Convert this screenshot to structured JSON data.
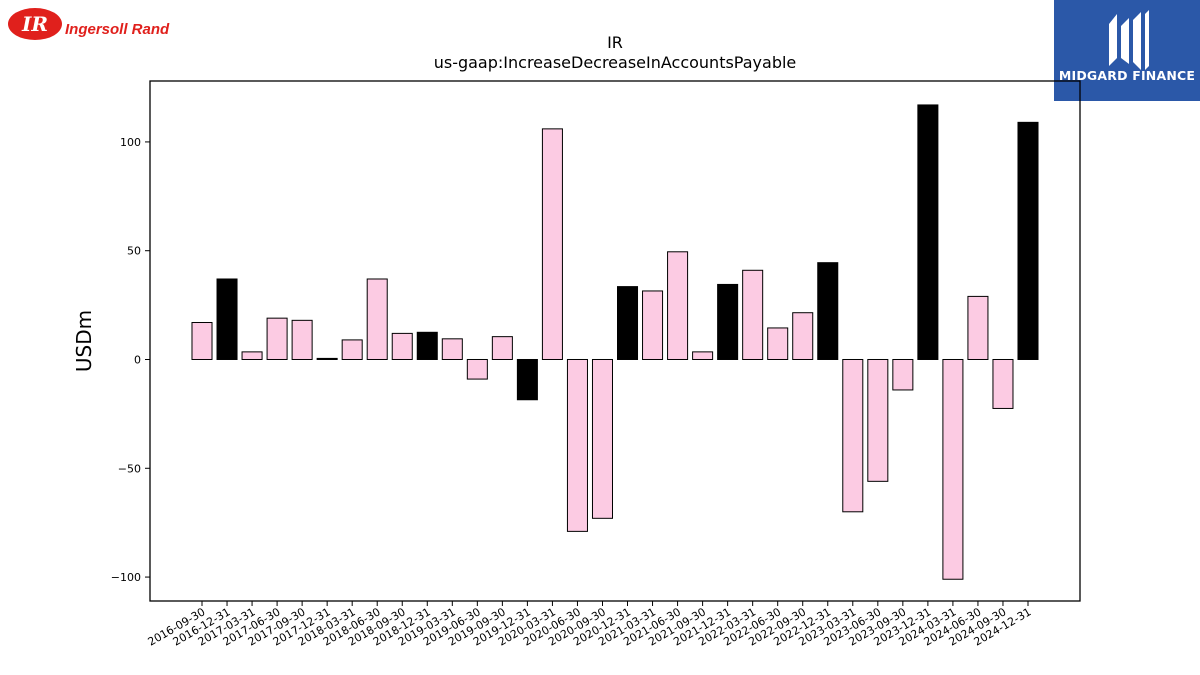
{
  "header": {
    "left_logo_name": "Ingersoll Rand",
    "right_logo_name": "MIDGARD FINANCE"
  },
  "colors": {
    "bar_light": "#fccbe3",
    "bar_dark": "#000000",
    "left_logo_red": "#e0201c",
    "right_logo_bg": "#2b58a8"
  },
  "chart_data": {
    "type": "bar",
    "title": "IR",
    "subtitle": "us-gaap:IncreaseDecreaseInAccountsPayable",
    "xlabel": "",
    "ylabel": "USDm",
    "ylim": [
      -111,
      128
    ],
    "yticks": [
      -100,
      -50,
      0,
      50,
      100
    ],
    "ytick_labels": [
      "−100",
      "−50",
      "0",
      "50",
      "100"
    ],
    "grid": false,
    "legend": "none",
    "categories": [
      "2016-09-30",
      "2016-12-31",
      "2017-03-31",
      "2017-06-30",
      "2017-09-30",
      "2017-12-31",
      "2018-03-31",
      "2018-06-30",
      "2018-09-30",
      "2018-12-31",
      "2019-03-31",
      "2019-06-30",
      "2019-09-30",
      "2019-12-31",
      "2020-03-31",
      "2020-06-30",
      "2020-09-30",
      "2020-12-31",
      "2021-03-31",
      "2021-06-30",
      "2021-09-30",
      "2021-12-31",
      "2022-03-31",
      "2022-06-30",
      "2022-09-30",
      "2022-12-31",
      "2023-03-31",
      "2023-06-30",
      "2023-09-30",
      "2023-12-31",
      "2024-03-31",
      "2024-06-30",
      "2024-09-30",
      "2024-12-31"
    ],
    "values": [
      17,
      37,
      3.5,
      19,
      18,
      0.5,
      9,
      37,
      12,
      12.5,
      9.5,
      -9,
      10.5,
      -18.5,
      106,
      -79,
      -73,
      33.5,
      31.5,
      49.5,
      3.5,
      34.5,
      41,
      14.5,
      21.5,
      44.5,
      -70,
      -56,
      -14,
      117,
      -101,
      29,
      -22.5,
      109
    ],
    "bar_colors": [
      "light",
      "dark",
      "light",
      "light",
      "light",
      "dark",
      "light",
      "light",
      "light",
      "dark",
      "light",
      "light",
      "light",
      "dark",
      "light",
      "light",
      "light",
      "dark",
      "light",
      "light",
      "light",
      "dark",
      "light",
      "light",
      "light",
      "dark",
      "light",
      "light",
      "light",
      "dark",
      "light",
      "light",
      "light",
      "dark"
    ]
  }
}
